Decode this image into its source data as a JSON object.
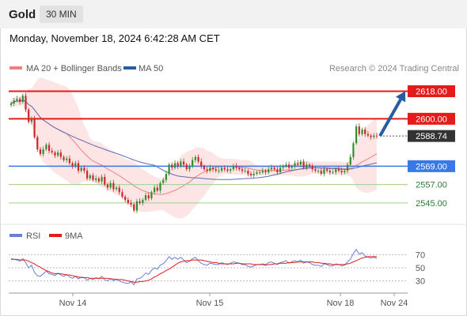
{
  "header": {
    "symbol": "Gold",
    "timeframe": "30 MIN"
  },
  "date_line": "Monday, November 18, 2024 6:42:28 AM CET",
  "copyright": "Research © 2024 Trading Central",
  "colors": {
    "up": "#2f8f2f",
    "down": "#cc2a2a",
    "ma20": "#f08080",
    "bands": "#fde2e2",
    "ma50": "#5b6cb3",
    "resistance": "#e31b1b",
    "support_blue": "#3b78e7",
    "support_green": "#9fcf8f",
    "arrow": "#2a5d9f",
    "last_price": "#333333",
    "rsi": "#6a7fd8",
    "rsi_ma": "#e31b1b"
  },
  "chart_data": [
    {
      "type": "candlestick",
      "title": "",
      "legend": [
        {
          "name": "MA 20 + Bollinger Bands",
          "color": "#f08080"
        },
        {
          "name": "MA 50",
          "color": "#2a5d9f"
        }
      ],
      "x_ticks": [
        "Nov 14",
        "Nov 15",
        "Nov 18",
        "Nov 24"
      ],
      "ylim": [
        2532,
        2626
      ],
      "levels": [
        {
          "label": "2618.00",
          "value": 2618.0,
          "kind": "resistance"
        },
        {
          "label": "2600.00",
          "value": 2600.0,
          "kind": "resistance"
        },
        {
          "label": "2588.74",
          "value": 2588.74,
          "kind": "last_price"
        },
        {
          "label": "2569.00",
          "value": 2569.0,
          "kind": "support"
        },
        {
          "label": "2557.00",
          "value": 2557.0,
          "kind": "support_minor"
        },
        {
          "label": "2545.00",
          "value": 2545.0,
          "kind": "support_minor"
        }
      ],
      "close": [
        2610,
        2612,
        2613,
        2611,
        2615,
        2606,
        2598,
        2600,
        2588,
        2580,
        2577,
        2580,
        2583,
        2579,
        2578,
        2576,
        2578,
        2575,
        2573,
        2574,
        2571,
        2569,
        2571,
        2566,
        2568,
        2566,
        2561,
        2563,
        2560,
        2561,
        2559,
        2562,
        2557,
        2555,
        2558,
        2554,
        2555,
        2552,
        2549,
        2547,
        2545,
        2544,
        2540,
        2546,
        2545,
        2547,
        2550,
        2548,
        2552,
        2555,
        2553,
        2558,
        2560,
        2564,
        2570,
        2568,
        2571,
        2569,
        2572,
        2570,
        2567,
        2569,
        2573,
        2575,
        2572,
        2569,
        2567,
        2566,
        2568,
        2567,
        2566,
        2566,
        2568,
        2567,
        2566,
        2567,
        2569,
        2568,
        2567,
        2566,
        2566,
        2564,
        2563,
        2564,
        2565,
        2565,
        2566,
        2565,
        2567,
        2568,
        2567,
        2565,
        2568,
        2569,
        2570,
        2568,
        2569,
        2571,
        2570,
        2572,
        2568,
        2570,
        2569,
        2567,
        2566,
        2566,
        2564,
        2567,
        2566,
        2565,
        2565,
        2567,
        2566,
        2565,
        2566,
        2570,
        2575,
        2584,
        2595,
        2590,
        2593,
        2590,
        2589,
        2588,
        2589,
        2588.74
      ],
      "projection": {
        "from": 2588.74,
        "to": 2618.0
      }
    },
    {
      "type": "line",
      "title": "",
      "legend": [
        {
          "name": "RSI",
          "color": "#6a7fd8"
        },
        {
          "name": "9MA",
          "color": "#e31b1b"
        }
      ],
      "y_ticks": [
        "70",
        "50",
        "30"
      ],
      "ylim": [
        15,
        85
      ],
      "series": [
        {
          "name": "RSI",
          "values": [
            64,
            63,
            62,
            60,
            64,
            58,
            50,
            54,
            43,
            38,
            37,
            41,
            45,
            41,
            40,
            38,
            42,
            39,
            37,
            40,
            36,
            34,
            37,
            33,
            36,
            35,
            31,
            34,
            32,
            35,
            33,
            37,
            32,
            30,
            34,
            30,
            33,
            30,
            28,
            27,
            26,
            29,
            24,
            33,
            34,
            37,
            42,
            40,
            46,
            50,
            48,
            54,
            56,
            61,
            67,
            63,
            66,
            63,
            66,
            62,
            58,
            60,
            64,
            66,
            61,
            57,
            55,
            54,
            57,
            56,
            55,
            55,
            58,
            56,
            55,
            57,
            59,
            58,
            57,
            55,
            55,
            52,
            51,
            53,
            55,
            55,
            56,
            55,
            58,
            59,
            57,
            55,
            58,
            59,
            61,
            57,
            59,
            61,
            59,
            62,
            57,
            59,
            58,
            55,
            54,
            54,
            52,
            56,
            55,
            53,
            53,
            56,
            55,
            53,
            54,
            59,
            63,
            72,
            78,
            71,
            73,
            68,
            66,
            65,
            66,
            64.5
          ]
        },
        {
          "name": "9MA",
          "values": [
            63,
            63,
            63,
            62,
            62,
            62,
            60,
            58,
            56,
            53,
            51,
            48,
            46,
            44,
            42,
            41,
            41,
            41,
            40,
            39,
            39,
            38,
            37,
            36,
            35,
            35,
            35,
            34,
            34,
            34,
            34,
            34,
            34,
            34,
            33,
            33,
            32,
            32,
            32,
            31,
            30,
            29,
            28,
            28,
            29,
            29,
            30,
            31,
            33,
            36,
            38,
            41,
            43,
            46,
            48,
            51,
            54,
            57,
            59,
            60,
            61,
            61,
            62,
            62,
            62,
            62,
            61,
            60,
            59,
            58,
            58,
            57,
            56,
            56,
            56,
            56,
            56,
            57,
            57,
            56,
            56,
            56,
            56,
            55,
            55,
            55,
            55,
            54,
            55,
            55,
            56,
            56,
            57,
            57,
            57,
            58,
            58,
            58,
            59,
            59,
            59,
            59,
            59,
            59,
            58,
            58,
            57,
            57,
            56,
            56,
            55,
            55,
            55,
            55,
            55,
            56,
            57,
            59,
            61,
            63,
            65,
            66,
            67,
            67,
            67,
            67
          ]
        }
      ]
    }
  ]
}
